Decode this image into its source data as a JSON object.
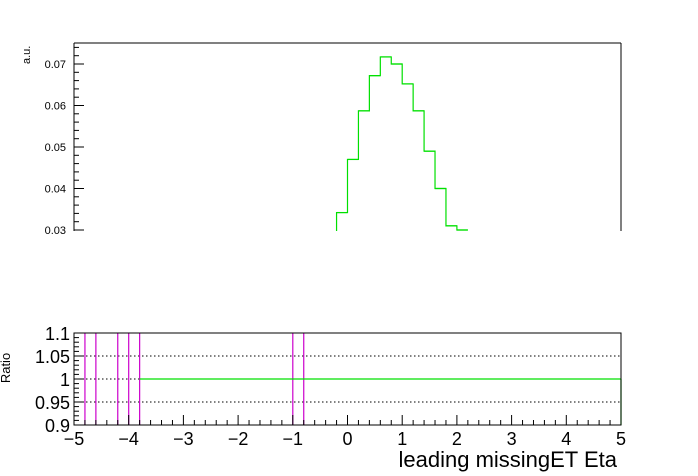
{
  "chart_data": [
    {
      "type": "line",
      "style": "step-histogram",
      "ylabel": "a.u.",
      "ylim": [
        0.03,
        0.075
      ],
      "y_ticks": [
        {
          "value": 0.03,
          "label": "0.03"
        },
        {
          "value": 0.04,
          "label": "0.04"
        },
        {
          "value": 0.05,
          "label": "0.05"
        },
        {
          "value": 0.06,
          "label": "0.06"
        },
        {
          "value": 0.07,
          "label": "0.07"
        }
      ],
      "xlim": [
        -5,
        5
      ],
      "series": [
        {
          "color": "#00e000",
          "bin_edges": [
            -0.2,
            0.0,
            0.2,
            0.4,
            0.6,
            0.8,
            1.0,
            1.2,
            1.4,
            1.6,
            1.8,
            2.0,
            2.2
          ],
          "values": [
            0.0342,
            0.047,
            0.0587,
            0.0672,
            0.0717,
            0.07,
            0.0652,
            0.0587,
            0.049,
            0.04,
            0.031,
            0.03
          ]
        }
      ],
      "grid": false
    },
    {
      "type": "line",
      "ylabel": "Ratio",
      "xlabel": "leading missingET Eta",
      "ylim": [
        0.9,
        1.1
      ],
      "xlim": [
        -5,
        5
      ],
      "x_ticks": [
        {
          "value": -5,
          "label": "−5"
        },
        {
          "value": -4,
          "label": "−4"
        },
        {
          "value": -3,
          "label": "−3"
        },
        {
          "value": -2,
          "label": "−2"
        },
        {
          "value": -1,
          "label": "−1"
        },
        {
          "value": 0,
          "label": "0"
        },
        {
          "value": 1,
          "label": "1"
        },
        {
          "value": 2,
          "label": "2"
        },
        {
          "value": 3,
          "label": "3"
        },
        {
          "value": 4,
          "label": "4"
        },
        {
          "value": 5,
          "label": "5"
        }
      ],
      "y_ticks": [
        {
          "value": 0.9,
          "label": "0.9"
        },
        {
          "value": 0.95,
          "label": "0.95"
        },
        {
          "value": 1.0,
          "label": "1"
        },
        {
          "value": 1.05,
          "label": "1.05"
        },
        {
          "value": 1.1,
          "label": "1.1"
        }
      ],
      "dotted_reference_lines": [
        0.95,
        1.0,
        1.05
      ],
      "ratio_line": {
        "value": 1.0,
        "x_from": -3.8,
        "x_to": 5.0,
        "color": "#00e000"
      },
      "vertical_markers": {
        "color": "#cc00cc",
        "x": [
          -4.8,
          -4.6,
          -4.2,
          -4.0,
          -3.8,
          -1.0,
          -0.8
        ]
      },
      "grid": "horizontal-dotted"
    }
  ]
}
